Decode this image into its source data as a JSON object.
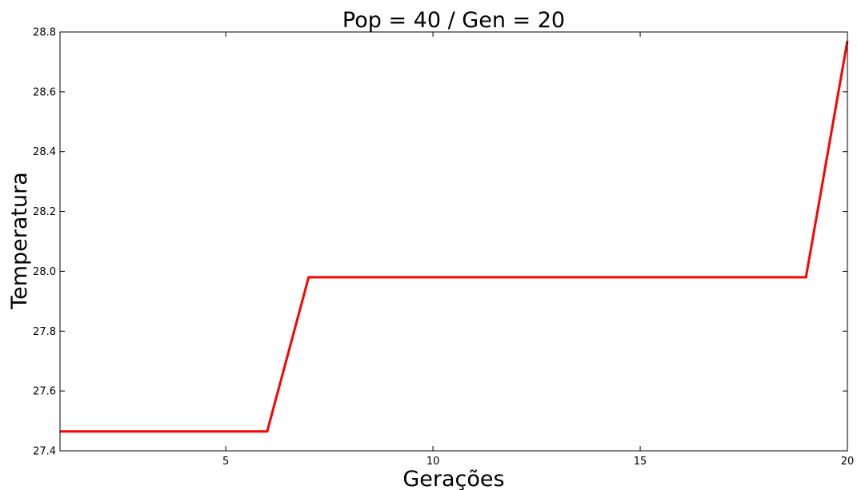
{
  "chart_data": {
    "type": "line",
    "title": "Pop = 40 / Gen = 20",
    "xlabel": "Gerações",
    "ylabel": "Temperatura",
    "xlim": [
      1,
      20
    ],
    "ylim": [
      27.4,
      28.8
    ],
    "xticks": [
      5,
      10,
      15,
      20
    ],
    "yticks": [
      27.4,
      27.6,
      27.8,
      28.0,
      28.2,
      28.4,
      28.6,
      28.8
    ],
    "ytick_labels": [
      "27.4",
      "27.6",
      "27.8",
      "28.0",
      "28.2",
      "28.4",
      "28.6",
      "28.8"
    ],
    "grid": false,
    "series": [
      {
        "color": "#ff0000",
        "x": [
          1,
          2,
          3,
          4,
          5,
          6,
          7,
          8,
          9,
          10,
          11,
          12,
          13,
          14,
          15,
          16,
          17,
          18,
          19,
          20
        ],
        "y": [
          27.465,
          27.465,
          27.465,
          27.465,
          27.465,
          27.465,
          27.98,
          27.98,
          27.98,
          27.98,
          27.98,
          27.98,
          27.98,
          27.98,
          27.98,
          27.98,
          27.98,
          27.98,
          27.98,
          28.77
        ]
      }
    ]
  }
}
